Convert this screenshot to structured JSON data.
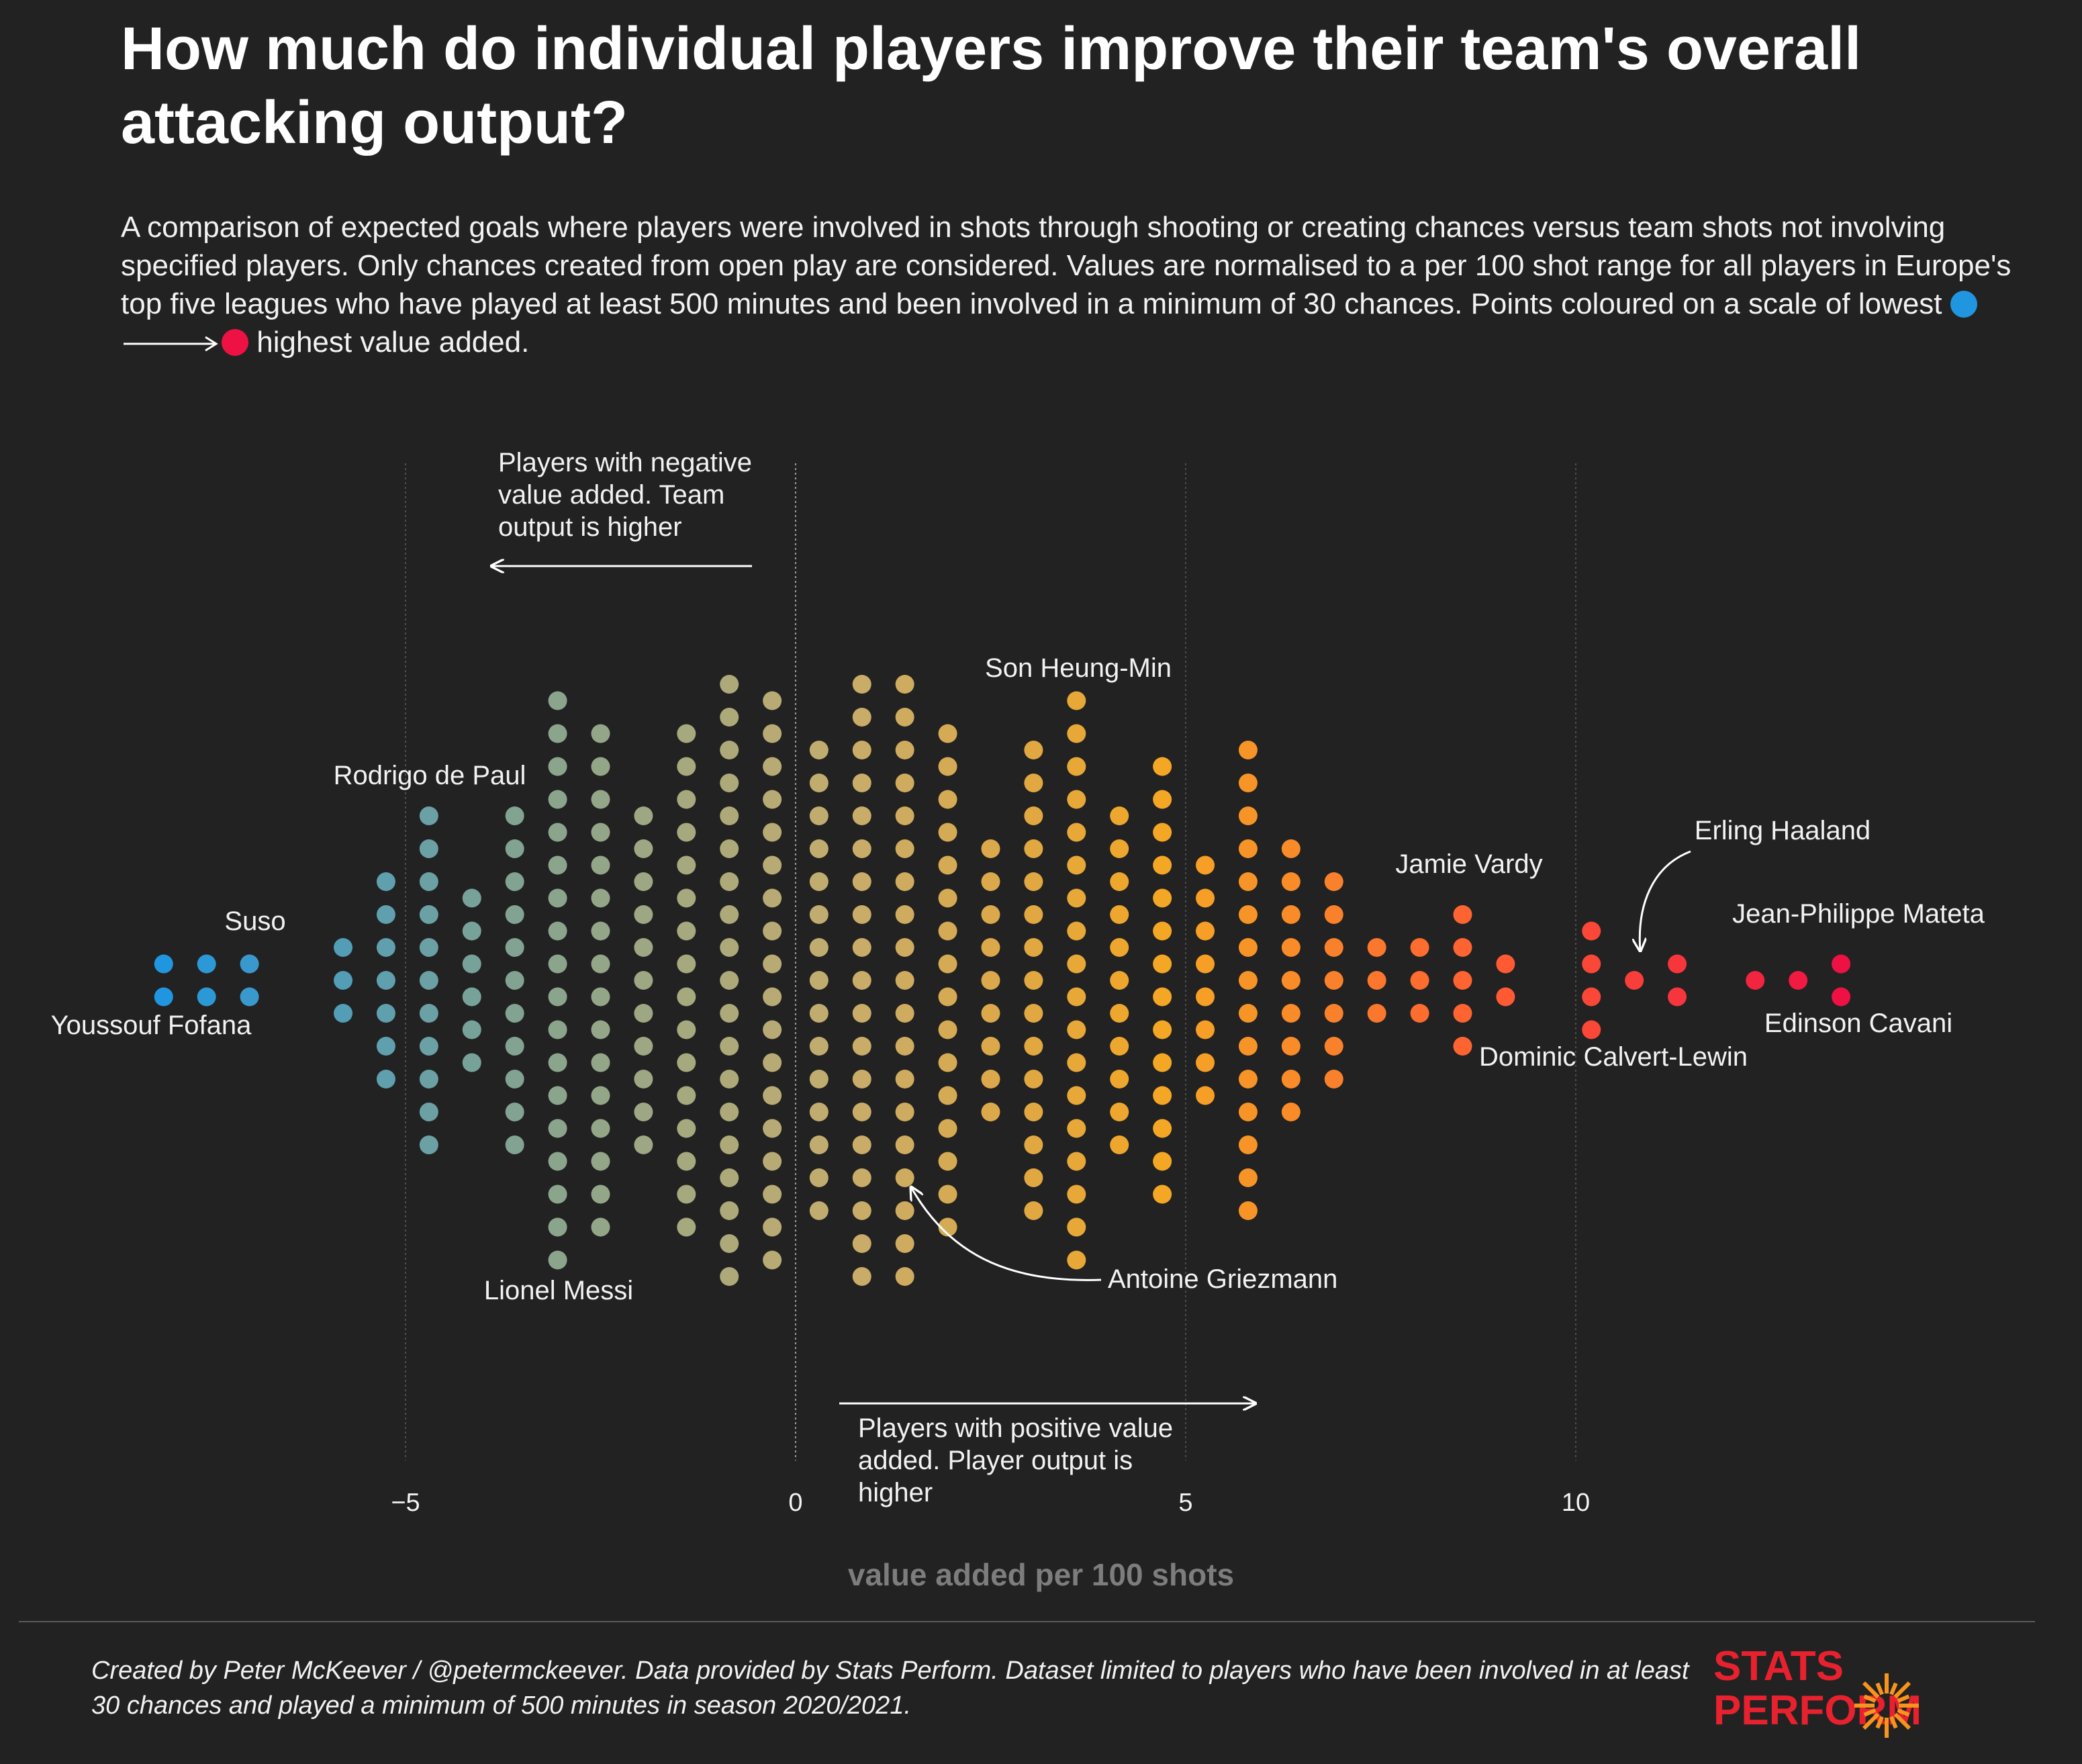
{
  "title": "How much do individual players improve their team's overall attacking output?",
  "subtitle": {
    "text": "A comparison of expected goals where players were involved in shots through shooting or creating chances versus team shots not involving specified players. Only chances created from open play are considered. Values are normalised to a per 100 shot range for all players in Europe's top five leagues who have played at least 500 minutes and been involved in a minimum of 30 chances. Points coloured on a scale of lowest",
    "text_end": "highest value added.",
    "low_color": "#2196e0",
    "high_color": "#ee1144"
  },
  "chart_data": {
    "type": "scatter",
    "subtype": "beeswarm",
    "xlabel": "value added per 100 shots",
    "xlim": [
      -10.2,
      16.5
    ],
    "xticks": [
      -5,
      0,
      5,
      10
    ],
    "xtick_labels": [
      "−5",
      "0",
      "5",
      "10"
    ],
    "grid_x": true,
    "bins": [
      {
        "x": -8.1,
        "count": 2
      },
      {
        "x": -7.55,
        "count": 2
      },
      {
        "x": -7.0,
        "count": 2
      },
      {
        "x": -5.8,
        "count": 3
      },
      {
        "x": -5.25,
        "count": 7
      },
      {
        "x": -4.7,
        "count": 11
      },
      {
        "x": -4.15,
        "count": 6
      },
      {
        "x": -3.6,
        "count": 11
      },
      {
        "x": -3.05,
        "count": 18
      },
      {
        "x": -2.5,
        "count": 16
      },
      {
        "x": -1.95,
        "count": 11
      },
      {
        "x": -1.4,
        "count": 16
      },
      {
        "x": -0.85,
        "count": 19
      },
      {
        "x": -0.3,
        "count": 18
      },
      {
        "x": 0.3,
        "count": 15
      },
      {
        "x": 0.85,
        "count": 19
      },
      {
        "x": 1.4,
        "count": 19
      },
      {
        "x": 1.95,
        "count": 16
      },
      {
        "x": 2.5,
        "count": 9
      },
      {
        "x": 3.05,
        "count": 15
      },
      {
        "x": 3.6,
        "count": 18
      },
      {
        "x": 4.15,
        "count": 11
      },
      {
        "x": 4.7,
        "count": 14
      },
      {
        "x": 5.25,
        "count": 8
      },
      {
        "x": 5.8,
        "count": 15
      },
      {
        "x": 6.35,
        "count": 9
      },
      {
        "x": 6.9,
        "count": 7
      },
      {
        "x": 7.45,
        "count": 3
      },
      {
        "x": 8.0,
        "count": 3
      },
      {
        "x": 8.55,
        "count": 5
      },
      {
        "x": 9.1,
        "count": 2
      },
      {
        "x": 10.2,
        "count": 4
      },
      {
        "x": 10.75,
        "count": 1
      },
      {
        "x": 11.3,
        "count": 2
      },
      {
        "x": 12.3,
        "count": 1
      },
      {
        "x": 12.85,
        "count": 1
      },
      {
        "x": 13.4,
        "count": 2
      }
    ],
    "annotations": [
      {
        "label": "Youssouf Fofana",
        "x": -8.1
      },
      {
        "label": "Suso",
        "x": -7.0
      },
      {
        "label": "Rodrigo de Paul",
        "x": -4.7
      },
      {
        "label": "Lionel Messi",
        "x": -3.05
      },
      {
        "label": "Son Heung-Min",
        "x": 3.6
      },
      {
        "label": "Antoine Griezmann",
        "x": 1.4
      },
      {
        "label": "Jamie Vardy",
        "x": 8.55
      },
      {
        "label": "Dominic Calvert-Lewin",
        "x": 8.55
      },
      {
        "label": "Erling Haaland",
        "x": 10.75
      },
      {
        "label": "Jean-Philippe Mateta",
        "x": 13.4
      },
      {
        "label": "Edinson Cavani",
        "x": 13.4
      }
    ],
    "negative_note": "Players with negative value added. Team output is higher",
    "positive_note": "Players with positive value added. Player output is higher",
    "color_stops": [
      "#2196e0",
      "#7fa394",
      "#c4ac6d",
      "#f5a623",
      "#ff5a33",
      "#ee1144"
    ]
  },
  "footer": "Created by Peter McKeever / @petermckeever. Data provided by Stats Perform. Dataset limited to players who have been involved in at least 30 chances and played a minimum of 500 minutes in season 2020/2021.",
  "logo": {
    "line1": "STATS",
    "line2": "PERFORM",
    "colors": [
      "#e8212e",
      "#f7941d"
    ]
  }
}
